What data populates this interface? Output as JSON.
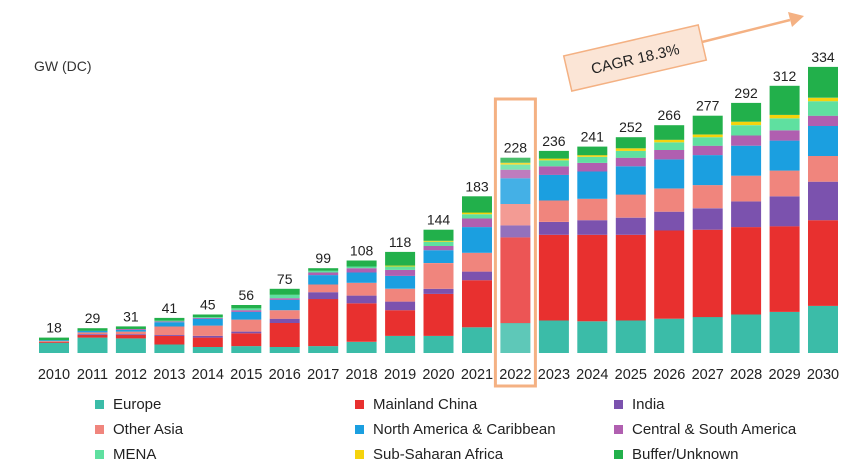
{
  "chart_data": {
    "type": "bar",
    "stacked": true,
    "ylabel": "GW (DC)",
    "categories": [
      "2010",
      "2011",
      "2012",
      "2013",
      "2014",
      "2015",
      "2016",
      "2017",
      "2018",
      "2019",
      "2020",
      "2021",
      "2022",
      "2023",
      "2024",
      "2025",
      "2026",
      "2027",
      "2028",
      "2029",
      "2030"
    ],
    "totals": [
      18,
      29,
      31,
      41,
      45,
      56,
      75,
      99,
      108,
      118,
      144,
      183,
      228,
      236,
      241,
      252,
      266,
      277,
      292,
      312,
      334
    ],
    "highlight": {
      "category": "2022",
      "color": "#f4b183"
    },
    "annotation": {
      "text": "CAGR 18.3%",
      "fill": "#fbe5d6",
      "border": "#f4b183",
      "arrow_color": "#f4b183"
    },
    "series": [
      {
        "name": "Europe",
        "color": "#3bbca8",
        "values": [
          12,
          18,
          17,
          10,
          7,
          8,
          7,
          8,
          13,
          20,
          20,
          30,
          35,
          38,
          37,
          38,
          40,
          42,
          45,
          48,
          55
        ]
      },
      {
        "name": "Mainland China",
        "color": "#e8302f",
        "values": [
          1,
          3,
          4,
          10,
          11,
          15,
          28,
          55,
          45,
          30,
          49,
          55,
          100,
          100,
          101,
          100,
          103,
          102,
          102,
          100,
          100
        ]
      },
      {
        "name": "India",
        "color": "#7b52ae",
        "values": [
          0,
          1,
          1,
          1,
          2,
          2,
          5,
          8,
          9,
          10,
          6,
          10,
          14,
          15,
          17,
          20,
          22,
          25,
          30,
          35,
          45
        ]
      },
      {
        "name": "Other Asia",
        "color": "#f0857d",
        "values": [
          1,
          2,
          3,
          10,
          12,
          14,
          10,
          9,
          15,
          15,
          30,
          22,
          25,
          25,
          25,
          27,
          27,
          27,
          30,
          30,
          30
        ]
      },
      {
        "name": "North America & Caribbean",
        "color": "#1b9fe0",
        "values": [
          1,
          2,
          2,
          5,
          8,
          9,
          12,
          11,
          12,
          15,
          15,
          30,
          30,
          30,
          32,
          33,
          34,
          35,
          35,
          35,
          35
        ]
      },
      {
        "name": "Central & South America",
        "color": "#b05fb0",
        "values": [
          0,
          0,
          1,
          1,
          1,
          2,
          2,
          3,
          5,
          7,
          5,
          10,
          10,
          10,
          10,
          10,
          11,
          11,
          12,
          12,
          12
        ]
      },
      {
        "name": "MENA",
        "color": "#5fe0a0",
        "values": [
          0,
          0,
          0,
          1,
          1,
          2,
          4,
          2,
          2,
          4,
          5,
          5,
          6,
          7,
          7,
          8,
          9,
          10,
          12,
          14,
          17
        ]
      },
      {
        "name": "Sub-Saharan Africa",
        "color": "#f5d30d",
        "values": [
          0,
          0,
          0,
          0,
          0,
          0,
          0,
          0,
          0,
          1,
          1,
          2,
          2,
          2,
          2,
          3,
          3,
          3,
          4,
          4,
          4
        ]
      },
      {
        "name": "Buffer/Unknown",
        "color": "#22b04b",
        "values": [
          3,
          3,
          3,
          3,
          3,
          4,
          7,
          3,
          7,
          16,
          13,
          19,
          6,
          9,
          10,
          13,
          17,
          22,
          22,
          34,
          36
        ]
      }
    ],
    "legend_position": "bottom"
  }
}
